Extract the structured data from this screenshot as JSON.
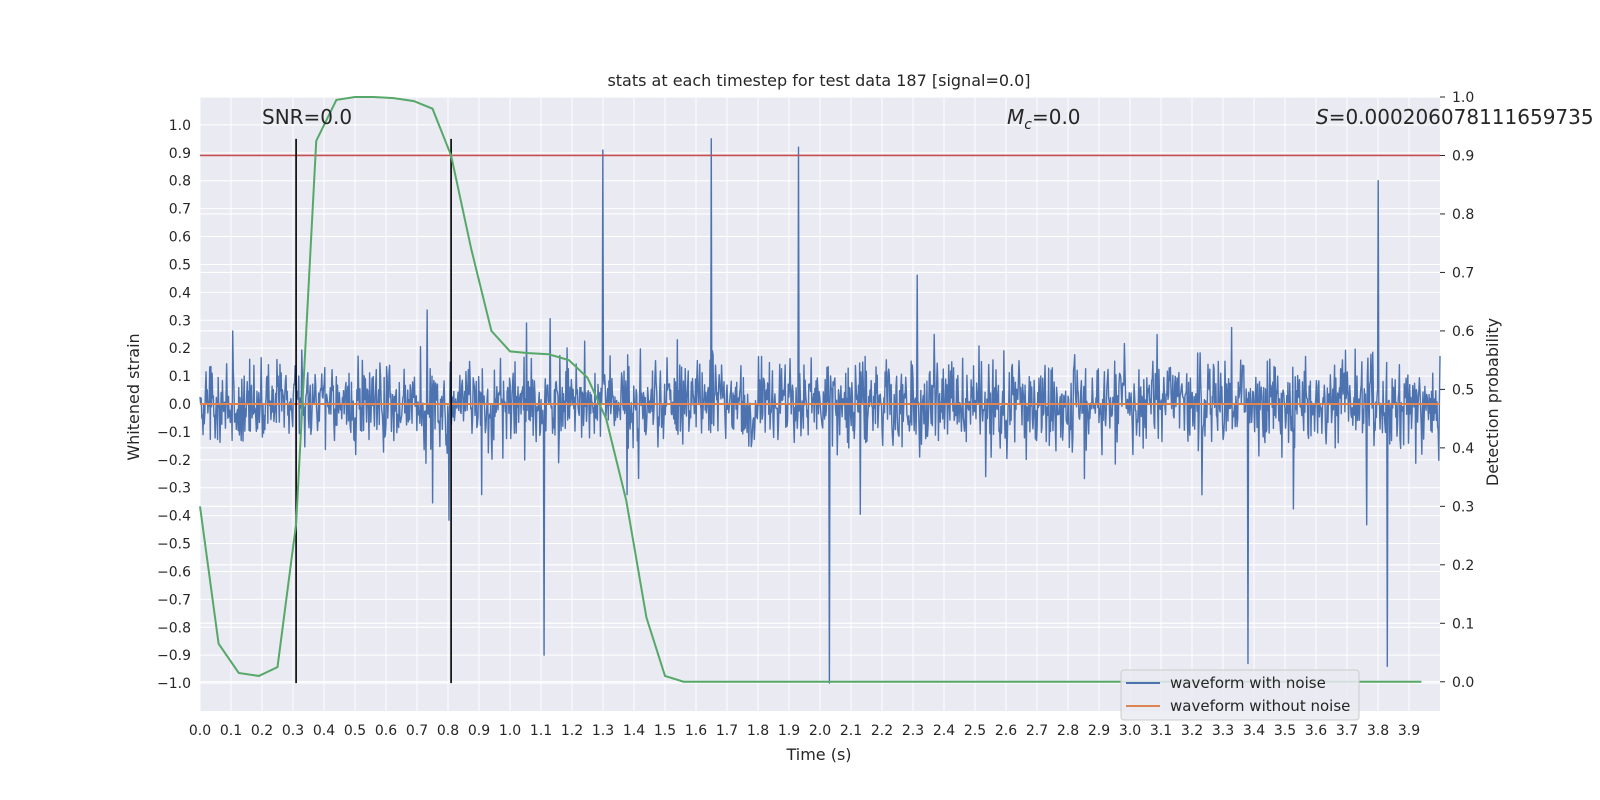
{
  "chart_data": {
    "type": "line",
    "title": "stats at each timestep for test data 187 [signal=0.0]",
    "xlabel": "Time (s)",
    "ylabel": "Whitened strain",
    "y2label": "Detection probability",
    "xlim": [
      0.0,
      4.0
    ],
    "ylim": [
      -1.1,
      1.1
    ],
    "y2lim": [
      -0.05,
      1.0
    ],
    "xticks": [
      "0.0",
      "0.1",
      "0.2",
      "0.3",
      "0.4",
      "0.5",
      "0.6",
      "0.7",
      "0.8",
      "0.9",
      "1.0",
      "1.1",
      "1.2",
      "1.3",
      "1.4",
      "1.5",
      "1.6",
      "1.7",
      "1.8",
      "1.9",
      "2.0",
      "2.1",
      "2.2",
      "2.3",
      "2.4",
      "2.5",
      "2.6",
      "2.7",
      "2.8",
      "2.9",
      "3.0",
      "3.1",
      "3.2",
      "3.3",
      "3.4",
      "3.5",
      "3.6",
      "3.7",
      "3.8",
      "3.9"
    ],
    "yticks": [
      "1.0",
      "0.9",
      "0.8",
      "0.7",
      "0.6",
      "0.5",
      "0.4",
      "0.3",
      "0.2",
      "0.1",
      "0.0",
      "−0.1",
      "−0.2",
      "−0.3",
      "−0.4",
      "−0.5",
      "−0.6",
      "−0.7",
      "−0.8",
      "−0.9",
      "−1.0"
    ],
    "y2ticks": [
      "1.0",
      "0.9",
      "0.8",
      "0.7",
      "0.6",
      "0.5",
      "0.4",
      "0.3",
      "0.2",
      "0.1",
      "0.0"
    ],
    "annotations": {
      "snr": "SNR=0.0",
      "mc_symbol": "M",
      "mc_sub": "c",
      "mc_value": "=0.0",
      "s_symbol": "S",
      "s_value": "=0.00020607811165973​5"
    },
    "legend": {
      "placement": "lower-right",
      "entries": [
        "waveform with noise",
        "waveform without noise"
      ]
    },
    "series": [
      {
        "name": "waveform with noise",
        "color": "#4c72b0",
        "axis": "left",
        "samples": 2048,
        "amplitude_range": [
          -1.0,
          0.95
        ],
        "notable_peaks": [
          {
            "x": 1.3,
            "y": 0.91
          },
          {
            "x": 1.65,
            "y": 0.95
          },
          {
            "x": 1.93,
            "y": 0.92
          },
          {
            "x": 3.8,
            "y": 0.8
          },
          {
            "x": 2.03,
            "y": -1.0
          },
          {
            "x": 3.38,
            "y": -0.93
          },
          {
            "x": 3.83,
            "y": -0.94
          },
          {
            "x": 1.11,
            "y": -0.9
          }
        ]
      },
      {
        "name": "waveform without noise",
        "color": "#dd8452",
        "axis": "left",
        "x": [
          0.0,
          4.0
        ],
        "y": [
          0.0,
          0.0
        ]
      },
      {
        "color": "#55a868",
        "axis": "right",
        "x": [
          0.0,
          0.06,
          0.125,
          0.19,
          0.25,
          0.31,
          0.375,
          0.44,
          0.5,
          0.56,
          0.625,
          0.69,
          0.75,
          0.81,
          0.875,
          0.94,
          1.0,
          1.06,
          1.125,
          1.19,
          1.25,
          1.31,
          1.375,
          1.44,
          1.5,
          1.56,
          1.625,
          1.69,
          1.75,
          1.81,
          1.875,
          1.94,
          2.0,
          2.5,
          3.0,
          3.5,
          3.94
        ],
        "y": [
          0.3,
          0.065,
          0.015,
          0.01,
          0.025,
          0.27,
          0.925,
          0.995,
          1.0,
          1.0,
          0.998,
          0.993,
          0.98,
          0.9,
          0.74,
          0.6,
          0.565,
          0.562,
          0.56,
          0.55,
          0.52,
          0.45,
          0.31,
          0.11,
          0.01,
          0.0,
          0.0,
          0.0,
          0.0,
          0.0,
          0.0,
          0.0,
          0.0,
          0.0,
          0.0,
          0.0,
          0.0
        ]
      }
    ],
    "hlines": [
      {
        "axis": "right",
        "y": 0.9,
        "color": "#c44e52"
      }
    ],
    "vlines": [
      {
        "x": 0.31,
        "y_from": -1.0,
        "y_to": 0.95,
        "color": "#000000"
      },
      {
        "x": 0.81,
        "y_from": -1.0,
        "y_to": 0.95,
        "color": "#000000"
      }
    ],
    "grid": true,
    "background": "#eaeaf2"
  }
}
